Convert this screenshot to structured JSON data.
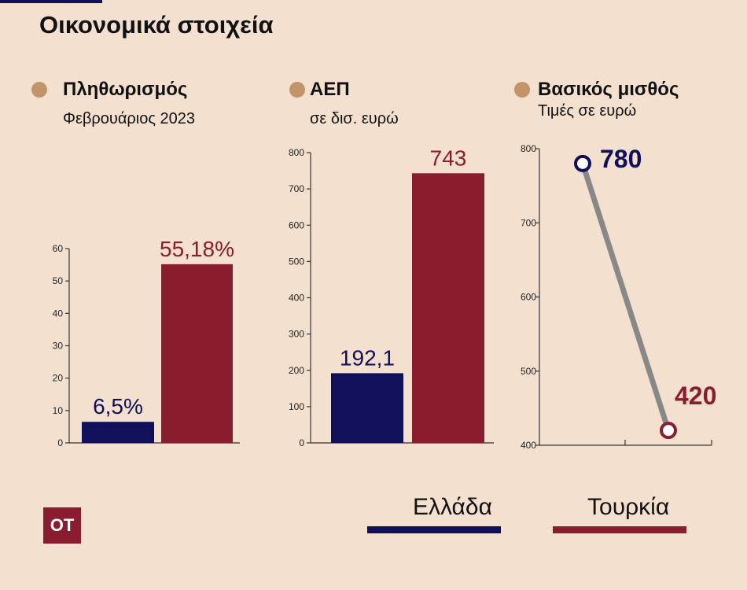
{
  "title": "Οικονομικά στοιχεία",
  "logo_text": "OT",
  "colors": {
    "greece": "#0f0f5a",
    "turkey": "#8a1c2f",
    "bullet": "#c29468",
    "connector": "#888888",
    "background": "#f4e0cf"
  },
  "legend": [
    {
      "label": "Ελλάδα",
      "color": "#0f0f5a"
    },
    {
      "label": "Τουρκία",
      "color": "#8a1c2f"
    }
  ],
  "chart_data": [
    {
      "type": "bar",
      "title": "Πληθωρισμός",
      "subtitle": "Φεβρουάριος 2023",
      "categories": [
        "Ελλάδα",
        "Τουρκία"
      ],
      "values": [
        6.5,
        55.18
      ],
      "data_labels": [
        "6,5%",
        "55,18%"
      ],
      "ylim": [
        0,
        60
      ],
      "yticks": [
        "0",
        "10",
        "20",
        "30",
        "40",
        "50",
        "60"
      ],
      "grid": false
    },
    {
      "type": "bar",
      "title": "ΑΕΠ",
      "subtitle": "σε δισ. ευρώ",
      "categories": [
        "Ελλάδα",
        "Τουρκία"
      ],
      "values": [
        192.1,
        743
      ],
      "data_labels": [
        "192,1",
        "743"
      ],
      "ylim": [
        0,
        800
      ],
      "yticks": [
        "0",
        "100",
        "200",
        "300",
        "400",
        "500",
        "600",
        "700",
        "800"
      ],
      "grid": false
    },
    {
      "type": "line",
      "title": "Βασικός μισθός",
      "subtitle": "Τιμές σε ευρώ",
      "categories": [
        "Ελλάδα",
        "Τουρκία"
      ],
      "values": [
        780,
        420
      ],
      "data_labels": [
        "780",
        "420"
      ],
      "ylim": [
        400,
        800
      ],
      "yticks": [
        "400",
        "500",
        "600",
        "700",
        "800"
      ],
      "grid": false
    }
  ]
}
